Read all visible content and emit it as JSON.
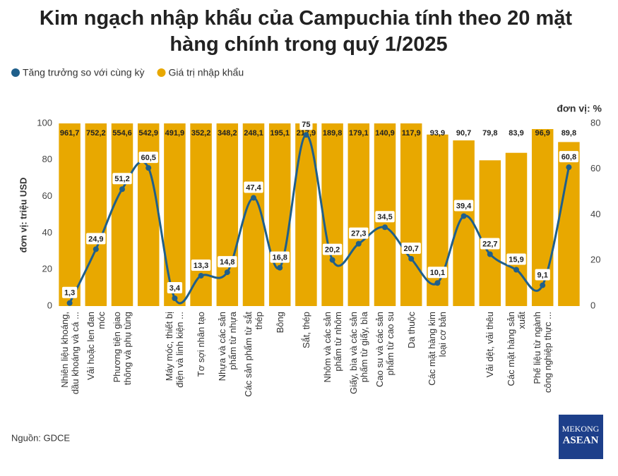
{
  "chart_data": {
    "type": "bar-line",
    "title": "Kim ngạch nhập khẩu của Campuchia tính theo 20 mặt hàng chính trong quý 1/2025",
    "ylabel": "đơn vị: triệu USD",
    "y2label": "đơn vị: %",
    "source": "Nguồn: GDCE",
    "logo": {
      "top": "MEKONG",
      "bottom": "ASEAN"
    },
    "categories": [
      "Nhiên liệu khoáng,\ndầu khoáng và cá ...",
      "Vải hoặc len đan\nmóc",
      "Phương tiện giao\nthông và phụ tùng",
      null,
      "Máy móc, thiết bị\nđiện và linh kiện ...",
      "Tơ sợi nhân tạo",
      "Nhựa và các sản\nphẩm từ nhựa",
      "Các sản phẩm từ sắt\nthép",
      "Bông",
      "Sắt, thép",
      "Nhôm và các sản\nphẩm từ nhôm",
      "Giấy, bìa và các sản\nphẩm từ giấy, bìa",
      "Cao su và các sản\nphẩm từ cao su",
      "Da thuộc",
      "Các mặt hàng kim\nloại cơ bản",
      null,
      "Vải dệt, vải thêu",
      "Các mặt hàng sản\nxuất",
      "Phế liệu từ ngành\ncông nghiệp thực ...",
      null
    ],
    "series": [
      {
        "name": "Tăng trưởng so với cùng kỳ",
        "type": "line",
        "axis": "y2",
        "color": "#1f5f8b",
        "values": [
          1.3,
          24.9,
          51.2,
          60.5,
          3.4,
          13.3,
          14.8,
          47.4,
          16.8,
          75,
          20.2,
          27.3,
          34.5,
          20.7,
          10.1,
          39.4,
          22.7,
          15.9,
          9.1,
          60.8
        ],
        "value_labels": [
          "1,3",
          "24,9",
          "51,2",
          "60,5",
          "3,4",
          "13,3",
          "14,8",
          "47,4",
          "16,8",
          "75",
          "20,2",
          "27,3",
          "34,5",
          "20,7",
          "10,1",
          "39,4",
          "22,7",
          "15,9",
          "9,1",
          "60,8"
        ]
      },
      {
        "name": "Giá trị nhập khẩu",
        "type": "bar",
        "color": "#e8a800",
        "values": [
          961.7,
          752.2,
          554.6,
          542.9,
          491.9,
          352.2,
          348.2,
          248.1,
          195.1,
          217.9,
          189.8,
          179.1,
          140.9,
          117.9,
          93.9,
          90.7,
          79.8,
          83.9,
          96.9,
          89.8
        ],
        "value_labels": [
          "961,7",
          "752,2",
          "554,6",
          "542,9",
          "491,9",
          "352,2",
          "348,2",
          "248,1",
          "195,1",
          "217,9",
          "189,8",
          "179,1",
          "140,9",
          "117,9",
          "93,9",
          "90,7",
          "79,8",
          "83,9",
          "96,9",
          "89,8"
        ]
      }
    ],
    "ylim": [
      0,
      100
    ],
    "yticks": [
      0,
      20,
      40,
      60,
      80,
      100
    ],
    "y2lim": [
      0,
      80
    ],
    "y2ticks": [
      0,
      20,
      40,
      60,
      80
    ]
  }
}
